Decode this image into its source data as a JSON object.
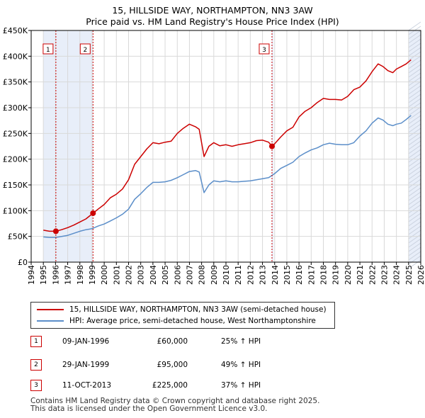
{
  "title_line1": "15, HILLSIDE WAY, NORTHAMPTON, NN3 3AW",
  "title_line2": "Price paid vs. HM Land Registry's House Price Index (HPI)",
  "colors": {
    "property": "#cc0000",
    "hpi": "#5b8ec9",
    "shade": "#e8eef9",
    "grid": "#d9d9d9",
    "marker_line": "#cc0000"
  },
  "legend": {
    "property_label": "15, HILLSIDE WAY, NORTHAMPTON, NN3 3AW (semi-detached house)",
    "hpi_label": "HPI: Average price, semi-detached house, West Northamptonshire"
  },
  "transactions": [
    {
      "num": "1",
      "date": "09-JAN-1996",
      "price": "£60,000",
      "hpi": "25% ↑ HPI"
    },
    {
      "num": "2",
      "date": "29-JAN-1999",
      "price": "£95,000",
      "hpi": "49% ↑ HPI"
    },
    {
      "num": "3",
      "date": "11-OCT-2013",
      "price": "£225,000",
      "hpi": "37% ↑ HPI"
    }
  ],
  "footer_line1": "Contains HM Land Registry data © Crown copyright and database right 2025.",
  "footer_line2": "This data is licensed under the Open Government Licence v3.0.",
  "chart_data": {
    "type": "line",
    "title": "15, HILLSIDE WAY, NORTHAMPTON, NN3 3AW — Price paid vs. HM Land Registry's House Price Index (HPI)",
    "xlabel": "",
    "ylabel": "",
    "xlim": [
      1994,
      2026
    ],
    "ylim": [
      0,
      450000
    ],
    "x_ticks": [
      1994,
      1995,
      1996,
      1997,
      1998,
      1999,
      2000,
      2001,
      2002,
      2003,
      2004,
      2005,
      2006,
      2007,
      2008,
      2009,
      2010,
      2011,
      2012,
      2013,
      2014,
      2015,
      2016,
      2017,
      2018,
      2019,
      2020,
      2021,
      2022,
      2023,
      2024,
      2025,
      2026
    ],
    "x_tick_labels": [
      "1994",
      "1995",
      "1996",
      "1997",
      "1998",
      "1999",
      "2000",
      "2001",
      "2002",
      "2003",
      "2004",
      "2005",
      "2006",
      "2007",
      "2008",
      "2009",
      "2010",
      "2011",
      "2012",
      "2013",
      "2014",
      "2015",
      "2016",
      "2017",
      "2018",
      "2019",
      "2020",
      "2021",
      "2022",
      "2023",
      "2024",
      "2025",
      "2026"
    ],
    "y_ticks": [
      0,
      50000,
      100000,
      150000,
      200000,
      250000,
      300000,
      350000,
      400000,
      450000
    ],
    "y_tick_labels": [
      "£0",
      "£50K",
      "£100K",
      "£150K",
      "£200K",
      "£250K",
      "£300K",
      "£350K",
      "£400K",
      "£450K"
    ],
    "grid": true,
    "legend_position": "below chart",
    "shaded_ranges": [
      [
        1995.0,
        1996.03
      ],
      [
        1996.03,
        1999.08
      ],
      [
        2013.78,
        2013.9
      ],
      [
        2025.0,
        2026.0
      ]
    ],
    "sales": [
      {
        "label": "1",
        "x": 1996.03,
        "y": 60000
      },
      {
        "label": "2",
        "x": 1999.08,
        "y": 95000
      },
      {
        "label": "3",
        "x": 2013.78,
        "y": 225000
      }
    ],
    "series": [
      {
        "name": "15, HILLSIDE WAY, NORTHAMPTON, NN3 3AW (semi-detached house)",
        "x": [
          1995.0,
          1995.5,
          1996.03,
          1996.5,
          1997.0,
          1997.5,
          1998.0,
          1998.5,
          1999.08,
          1999.5,
          2000.0,
          2000.5,
          2001.0,
          2001.5,
          2002.0,
          2002.5,
          2003.0,
          2003.5,
          2004.0,
          2004.5,
          2005.0,
          2005.5,
          2006.0,
          2006.5,
          2007.0,
          2007.5,
          2007.8,
          2008.2,
          2008.6,
          2009.0,
          2009.5,
          2010.0,
          2010.5,
          2011.0,
          2011.5,
          2012.0,
          2012.5,
          2013.0,
          2013.5,
          2013.78,
          2014.0,
          2014.5,
          2015.0,
          2015.5,
          2016.0,
          2016.5,
          2017.0,
          2017.5,
          2018.0,
          2018.5,
          2019.0,
          2019.5,
          2020.0,
          2020.5,
          2021.0,
          2021.5,
          2022.0,
          2022.5,
          2022.9,
          2023.3,
          2023.7,
          2024.0,
          2024.4,
          2024.8,
          2025.2
        ],
        "values": [
          62000,
          60000,
          60000,
          63000,
          67000,
          72000,
          78000,
          84000,
          95000,
          103000,
          112000,
          125000,
          132000,
          142000,
          160000,
          190000,
          205000,
          220000,
          232000,
          230000,
          233000,
          235000,
          250000,
          260000,
          268000,
          263000,
          258000,
          205000,
          225000,
          232000,
          226000,
          228000,
          225000,
          228000,
          230000,
          232000,
          236000,
          237000,
          233000,
          225000,
          230000,
          243000,
          255000,
          262000,
          282000,
          293000,
          300000,
          310000,
          318000,
          316000,
          316000,
          315000,
          322000,
          335000,
          340000,
          352000,
          370000,
          385000,
          380000,
          372000,
          368000,
          375000,
          380000,
          385000,
          393000
        ]
      },
      {
        "name": "HPI: Average price, semi-detached house, West Northamptonshire",
        "x": [
          1995.0,
          1995.5,
          1996.0,
          1996.5,
          1997.0,
          1997.5,
          1998.0,
          1998.5,
          1999.0,
          1999.5,
          2000.0,
          2000.5,
          2001.0,
          2001.5,
          2002.0,
          2002.5,
          2003.0,
          2003.5,
          2004.0,
          2004.5,
          2005.0,
          2005.5,
          2006.0,
          2006.5,
          2007.0,
          2007.5,
          2007.8,
          2008.2,
          2008.6,
          2009.0,
          2009.5,
          2010.0,
          2010.5,
          2011.0,
          2011.5,
          2012.0,
          2012.5,
          2013.0,
          2013.5,
          2014.0,
          2014.5,
          2015.0,
          2015.5,
          2016.0,
          2016.5,
          2017.0,
          2017.5,
          2018.0,
          2018.5,
          2019.0,
          2019.5,
          2020.0,
          2020.5,
          2021.0,
          2021.5,
          2022.0,
          2022.5,
          2022.9,
          2023.3,
          2023.7,
          2024.0,
          2024.4,
          2024.8,
          2025.2
        ],
        "values": [
          49000,
          48000,
          48000,
          50000,
          52000,
          56000,
          60000,
          63000,
          65000,
          70000,
          74000,
          80000,
          86000,
          93000,
          103000,
          122000,
          133000,
          145000,
          155000,
          155000,
          156000,
          159000,
          164000,
          170000,
          176000,
          178000,
          175000,
          135000,
          150000,
          158000,
          156000,
          158000,
          156000,
          156000,
          157000,
          158000,
          160000,
          162000,
          164000,
          172000,
          182000,
          188000,
          194000,
          205000,
          212000,
          218000,
          222000,
          228000,
          231000,
          229000,
          228000,
          228000,
          232000,
          245000,
          255000,
          270000,
          280000,
          276000,
          268000,
          265000,
          268000,
          270000,
          277000,
          285000
        ]
      }
    ]
  }
}
